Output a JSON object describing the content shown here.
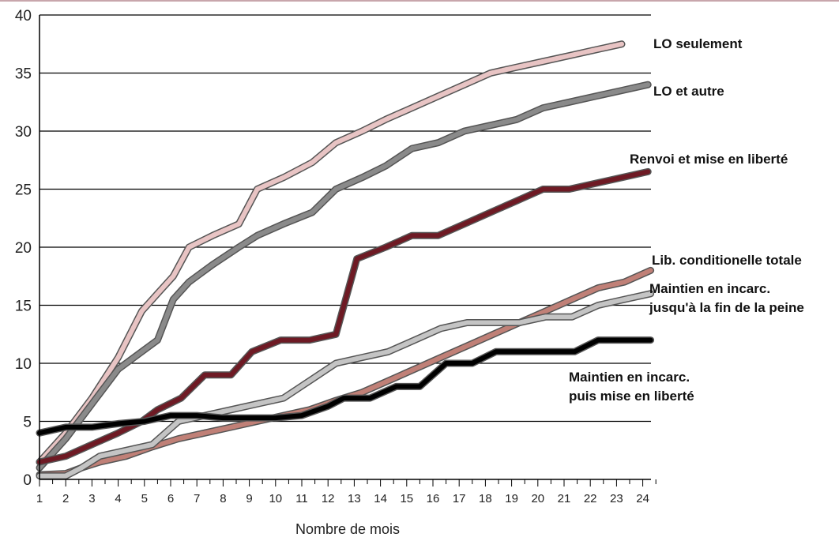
{
  "chart_data": {
    "type": "line",
    "xlabel": "Nombre de mois",
    "ylabel": "",
    "x": [
      1,
      2,
      3,
      4,
      5,
      6,
      7,
      8,
      9,
      10,
      11,
      12,
      13,
      14,
      15,
      16,
      17,
      18,
      19,
      20,
      21,
      22,
      23,
      24
    ],
    "xticks": [
      "1",
      "2",
      "3",
      "4",
      "5",
      "6",
      "7",
      "8",
      "9",
      "10",
      "11",
      "12",
      "13",
      "14",
      "15",
      "16",
      "17",
      "18",
      "19",
      "20",
      "21",
      "22",
      "23",
      "24"
    ],
    "ylim": [
      0,
      40
    ],
    "yticks": [
      0,
      5,
      10,
      15,
      20,
      25,
      30,
      35,
      40
    ],
    "grid": true,
    "series": [
      {
        "name": "LO seulement",
        "color": "#e8c4c4",
        "points": [
          [
            1,
            1.5
          ],
          [
            2,
            4
          ],
          [
            3,
            7
          ],
          [
            4,
            10.5
          ],
          [
            4.9,
            14.5
          ],
          [
            5.5,
            16
          ],
          [
            6.1,
            17.5
          ],
          [
            6.7,
            20
          ],
          [
            7.6,
            21
          ],
          [
            8.6,
            22
          ],
          [
            9.3,
            25
          ],
          [
            10.3,
            26
          ],
          [
            11.4,
            27.3
          ],
          [
            12.3,
            29
          ],
          [
            13.3,
            30
          ],
          [
            14.2,
            31
          ],
          [
            15.2,
            32
          ],
          [
            16.2,
            33
          ],
          [
            17.2,
            34
          ],
          [
            18.2,
            35
          ],
          [
            19.2,
            35.5
          ],
          [
            20.2,
            36
          ],
          [
            21.2,
            36.5
          ],
          [
            22.2,
            37
          ],
          [
            23.2,
            37.5
          ]
        ]
      },
      {
        "name": "LO et autre",
        "color": "#8a8a8a",
        "points": [
          [
            1,
            1
          ],
          [
            2,
            3.5
          ],
          [
            3,
            6.5
          ],
          [
            4,
            9.5
          ],
          [
            4.9,
            11
          ],
          [
            5.5,
            12
          ],
          [
            6.1,
            15.5
          ],
          [
            6.7,
            17
          ],
          [
            7.6,
            18.5
          ],
          [
            8.6,
            20
          ],
          [
            9.3,
            21
          ],
          [
            10.3,
            22
          ],
          [
            11.4,
            23
          ],
          [
            12.3,
            25
          ],
          [
            13.3,
            26
          ],
          [
            14.2,
            27
          ],
          [
            15.2,
            28.5
          ],
          [
            16.2,
            29
          ],
          [
            17.2,
            30
          ],
          [
            18.2,
            30.5
          ],
          [
            19.2,
            31
          ],
          [
            20.2,
            32
          ],
          [
            21.2,
            32.5
          ],
          [
            22.2,
            33
          ],
          [
            23.2,
            33.5
          ],
          [
            24.2,
            34
          ]
        ]
      },
      {
        "name": "Renvoi et mise en liberté",
        "color": "#6e1a24",
        "points": [
          [
            1,
            1.5
          ],
          [
            2,
            2
          ],
          [
            3,
            3
          ],
          [
            4,
            4
          ],
          [
            4.9,
            5
          ],
          [
            5.5,
            6
          ],
          [
            6.4,
            7
          ],
          [
            7.3,
            9
          ],
          [
            8.3,
            9
          ],
          [
            9.1,
            11
          ],
          [
            10.2,
            12
          ],
          [
            11.3,
            12
          ],
          [
            12.3,
            12.5
          ],
          [
            13.1,
            19
          ],
          [
            14.2,
            20
          ],
          [
            15.2,
            21
          ],
          [
            16.2,
            21
          ],
          [
            17.2,
            22
          ],
          [
            18.2,
            23
          ],
          [
            19.2,
            24
          ],
          [
            20.2,
            25
          ],
          [
            21.2,
            25
          ],
          [
            22.2,
            25.5
          ],
          [
            23.2,
            26
          ],
          [
            24.2,
            26.5
          ]
        ]
      },
      {
        "name": "Lib. conditionnelle totale",
        "color": "#c08077",
        "points": [
          [
            1,
            0.4
          ],
          [
            2,
            0.5
          ],
          [
            2.6,
            1
          ],
          [
            3.3,
            1.5
          ],
          [
            4.3,
            2
          ],
          [
            5.3,
            2.8
          ],
          [
            6.3,
            3.5
          ],
          [
            7.3,
            4
          ],
          [
            8.3,
            4.5
          ],
          [
            9.3,
            5
          ],
          [
            10.3,
            5.5
          ],
          [
            11.3,
            6
          ],
          [
            12.3,
            6.8
          ],
          [
            13.3,
            7.5
          ],
          [
            14.3,
            8.5
          ],
          [
            15.3,
            9.5
          ],
          [
            16.3,
            10.5
          ],
          [
            17.3,
            11.5
          ],
          [
            18.3,
            12.5
          ],
          [
            19.3,
            13.5
          ],
          [
            20.3,
            14.5
          ],
          [
            21.3,
            15.5
          ],
          [
            22.3,
            16.5
          ],
          [
            23.3,
            17
          ],
          [
            24.3,
            18
          ]
        ]
      },
      {
        "name": "Maintien en incarc. jusqu'à la fin de la peine",
        "color": "#c4c4c4",
        "points": [
          [
            1,
            0.3
          ],
          [
            2,
            0.3
          ],
          [
            2.6,
            1
          ],
          [
            3.3,
            2
          ],
          [
            4.3,
            2.5
          ],
          [
            5.3,
            3
          ],
          [
            6.3,
            5
          ],
          [
            7.3,
            5.5
          ],
          [
            8.3,
            6
          ],
          [
            9.3,
            6.5
          ],
          [
            10.3,
            7
          ],
          [
            11.3,
            8.5
          ],
          [
            12.3,
            10
          ],
          [
            13.3,
            10.5
          ],
          [
            14.3,
            11
          ],
          [
            15.3,
            12
          ],
          [
            16.3,
            13
          ],
          [
            17.3,
            13.5
          ],
          [
            18.3,
            13.5
          ],
          [
            19.3,
            13.5
          ],
          [
            20.3,
            14
          ],
          [
            21.3,
            14
          ],
          [
            22.3,
            15
          ],
          [
            23.3,
            15.5
          ],
          [
            24.3,
            16
          ]
        ]
      },
      {
        "name": "Maintien en incarc. puis mise en liberté",
        "color": "#000000",
        "points": [
          [
            1,
            4
          ],
          [
            2,
            4.5
          ],
          [
            3,
            4.5
          ],
          [
            4,
            4.8
          ],
          [
            5,
            5
          ],
          [
            6,
            5.5
          ],
          [
            7,
            5.5
          ],
          [
            8,
            5.3
          ],
          [
            9,
            5.3
          ],
          [
            10,
            5.3
          ],
          [
            11,
            5.5
          ],
          [
            12,
            6.3
          ],
          [
            12.6,
            7
          ],
          [
            13.6,
            7
          ],
          [
            14.6,
            8
          ],
          [
            15.5,
            8
          ],
          [
            16.5,
            10
          ],
          [
            17.5,
            10
          ],
          [
            18.4,
            11
          ],
          [
            19.4,
            11
          ],
          [
            20.4,
            11
          ],
          [
            21.4,
            11
          ],
          [
            22.3,
            12
          ],
          [
            23.3,
            12
          ],
          [
            24.3,
            12
          ]
        ]
      }
    ],
    "labels": [
      {
        "lines": [
          "LO seulement"
        ],
        "series": 0
      },
      {
        "lines": [
          "LO et autre"
        ],
        "series": 1
      },
      {
        "lines": [
          "Renvoi et mise en liberté"
        ],
        "series": 2
      },
      {
        "lines": [
          "Lib. conditionelle totale"
        ],
        "series": 3
      },
      {
        "lines": [
          "Maintien en incarc.",
          "jusqu'à la fin de la peine"
        ],
        "series": 4
      },
      {
        "lines": [
          "Maintien en incarc.",
          "puis mise en liberté"
        ],
        "series": 5
      }
    ]
  }
}
